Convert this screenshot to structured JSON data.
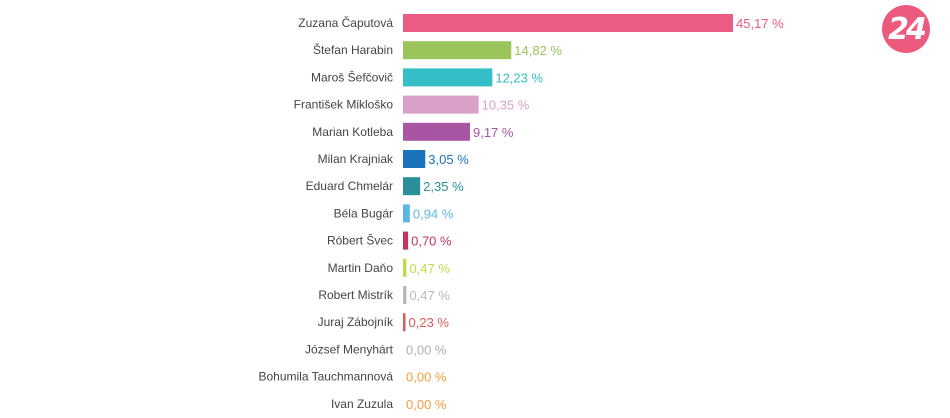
{
  "logo": {
    "text": "24",
    "color": "#ec5b7d"
  },
  "chart_data": {
    "type": "bar",
    "orientation": "horizontal",
    "categories": [
      "Zuzana Čaputová",
      "Štefan Harabin",
      "Maroš Šefčovič",
      "František Mikloško",
      "Marian Kotleba",
      "Milan Krajniak",
      "Eduard Chmelár",
      "Béla Bugár",
      "Róbert Švec",
      "Martin Daňo",
      "Robert Mistrík",
      "Juraj Zábojník",
      "József Menyhárt",
      "Bohumila Tauchmannová",
      "Ivan Zuzula"
    ],
    "values": [
      45.17,
      14.82,
      12.23,
      10.35,
      9.17,
      3.05,
      2.35,
      0.94,
      0.7,
      0.47,
      0.47,
      0.23,
      0.0,
      0.0,
      0.0
    ],
    "value_labels": [
      "45,17 %",
      "14,82 %",
      "12,23 %",
      "10,35 %",
      "9,17 %",
      "3,05 %",
      "2,35 %",
      "0,94 %",
      "0,70 %",
      "0,47 %",
      "0,47 %",
      "0,23 %",
      "0,00 %",
      "0,00 %",
      "0,00 %"
    ],
    "colors": [
      "#ec5b84",
      "#9bc45a",
      "#34bec8",
      "#d9a0c8",
      "#a855a4",
      "#1a73bb",
      "#2a8f99",
      "#5bb8e6",
      "#c2355e",
      "#c3d94a",
      "#b8b8b8",
      "#e35656",
      "#b0b0b0",
      "#f0a040",
      "#f0a040"
    ],
    "label_colors": [
      "#ec5b84",
      "#9bc45a",
      "#34bec8",
      "#d9a0c8",
      "#a855a4",
      "#1a73bb",
      "#2a8f99",
      "#5bb8e6",
      "#c2355e",
      "#c3d94a",
      "#b8b8b8",
      "#e35656",
      "#b0b0b0",
      "#f0a040",
      "#f0a040"
    ],
    "xlim": [
      0,
      45.17
    ],
    "grid": false,
    "title": "",
    "xlabel": "",
    "ylabel": ""
  }
}
